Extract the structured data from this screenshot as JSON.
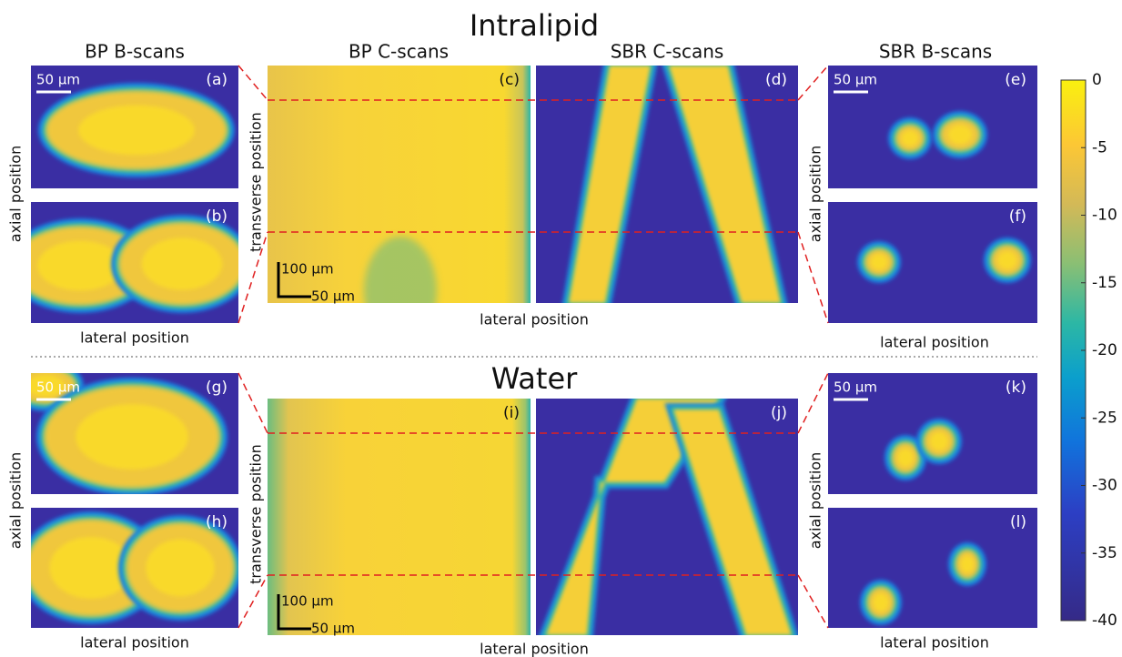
{
  "title_top": "Intralipid",
  "title_bottom": "Water",
  "column_headers": [
    "BP B-scans",
    "BP C-scans",
    "SBR C-scans",
    "SBR B-scans"
  ],
  "axis_labels": {
    "lateral": "lateral position",
    "axial": "axial position",
    "transverse": "transverse position"
  },
  "panels": [
    "(a)",
    "(b)",
    "(c)",
    "(d)",
    "(e)",
    "(f)",
    "(g)",
    "(h)",
    "(i)",
    "(j)",
    "(k)",
    "(l)"
  ],
  "scale_bars": {
    "b_scan": "50 µm",
    "c_scan_vertical": "100 µm",
    "c_scan_horizontal": "50 µm"
  },
  "colorbar": {
    "ticks": [
      0,
      -5,
      -10,
      -15,
      -20,
      -25,
      -30,
      -35,
      -40
    ]
  }
}
